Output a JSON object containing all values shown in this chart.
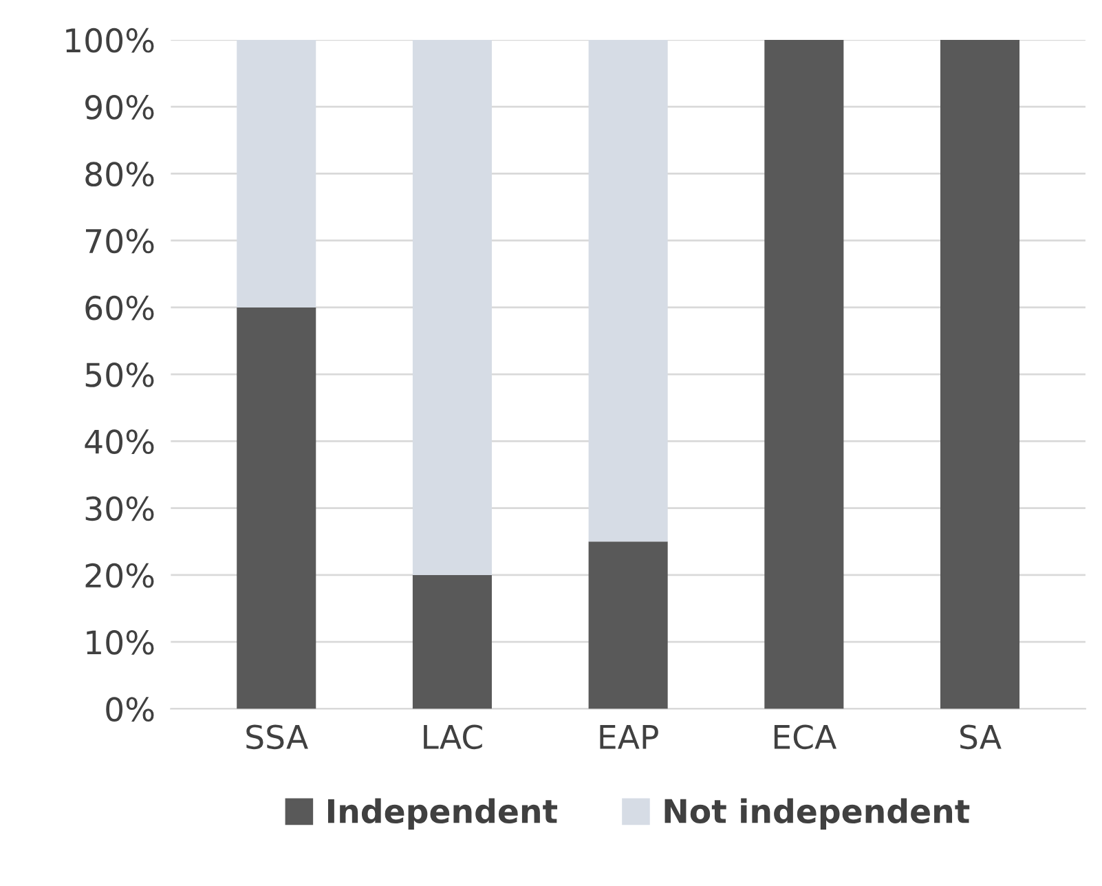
{
  "chart_data": {
    "type": "bar",
    "stacked": true,
    "categories": [
      "SSA",
      "LAC",
      "EAP",
      "ECA",
      "SA"
    ],
    "series": [
      {
        "name": "Independent",
        "color": "#595959",
        "values": [
          60,
          20,
          25,
          100,
          100
        ]
      },
      {
        "name": "Not independent",
        "color": "#d6dce5",
        "values": [
          40,
          80,
          75,
          0,
          0
        ]
      }
    ],
    "ylim": [
      0,
      100
    ],
    "yticks": [
      {
        "value": 0,
        "label": "0%"
      },
      {
        "value": 10,
        "label": "10%"
      },
      {
        "value": 20,
        "label": "20%"
      },
      {
        "value": 30,
        "label": "30%"
      },
      {
        "value": 40,
        "label": "40%"
      },
      {
        "value": 50,
        "label": "50%"
      },
      {
        "value": 60,
        "label": "60%"
      },
      {
        "value": 70,
        "label": "70%"
      },
      {
        "value": 80,
        "label": "80%"
      },
      {
        "value": 90,
        "label": "90%"
      },
      {
        "value": 100,
        "label": "100%"
      }
    ],
    "grid": "y",
    "legend": "bottom"
  }
}
